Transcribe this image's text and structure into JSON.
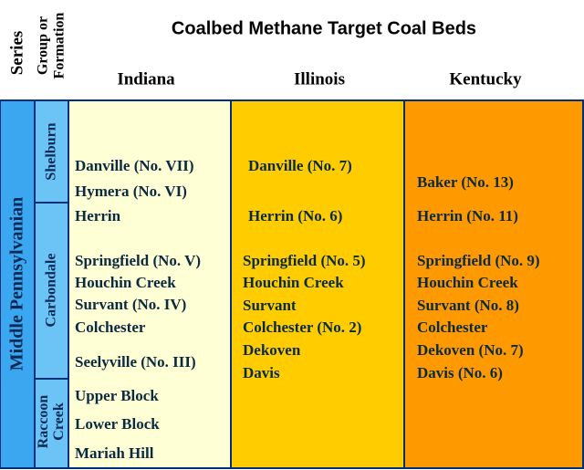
{
  "header": {
    "series": "Series",
    "group": [
      "Group or",
      "Formation"
    ],
    "title": "Coalbed Methane Target Coal Beds"
  },
  "series_label": "Middle Pennsylvanian",
  "groups": [
    {
      "lines": [
        "Shelburn"
      ]
    },
    {
      "lines": [
        "Carbondale"
      ]
    },
    {
      "lines": [
        "Raccoon",
        "Creek"
      ]
    }
  ],
  "columns": [
    {
      "name": "Indiana",
      "beds": [
        "Danville (No. VII)",
        "Hymera (No. VI)",
        "Herrin",
        "Springfield (No. V)",
        "Houchin Creek",
        "Survant (No. IV)",
        "Colchester",
        "Seelyville (No. III)",
        "Upper Block",
        "Lower Block",
        "Mariah Hill"
      ]
    },
    {
      "name": "Illinois",
      "beds": [
        "Danville (No. 7)",
        "Herrin (No. 6)",
        "Springfield (No. 5)",
        "Houchin Creek",
        "Survant",
        "Colchester (No. 2)",
        "Dekoven",
        "Davis"
      ]
    },
    {
      "name": "Kentucky",
      "beds": [
        "Baker (No. 13)",
        "Herrin (No. 11)",
        "Springfield (No. 9)",
        "Houchin Creek",
        "Survant (No. 8)",
        "Colchester",
        "Dekoven (No. 7)",
        "Davis (No. 6)"
      ]
    }
  ]
}
